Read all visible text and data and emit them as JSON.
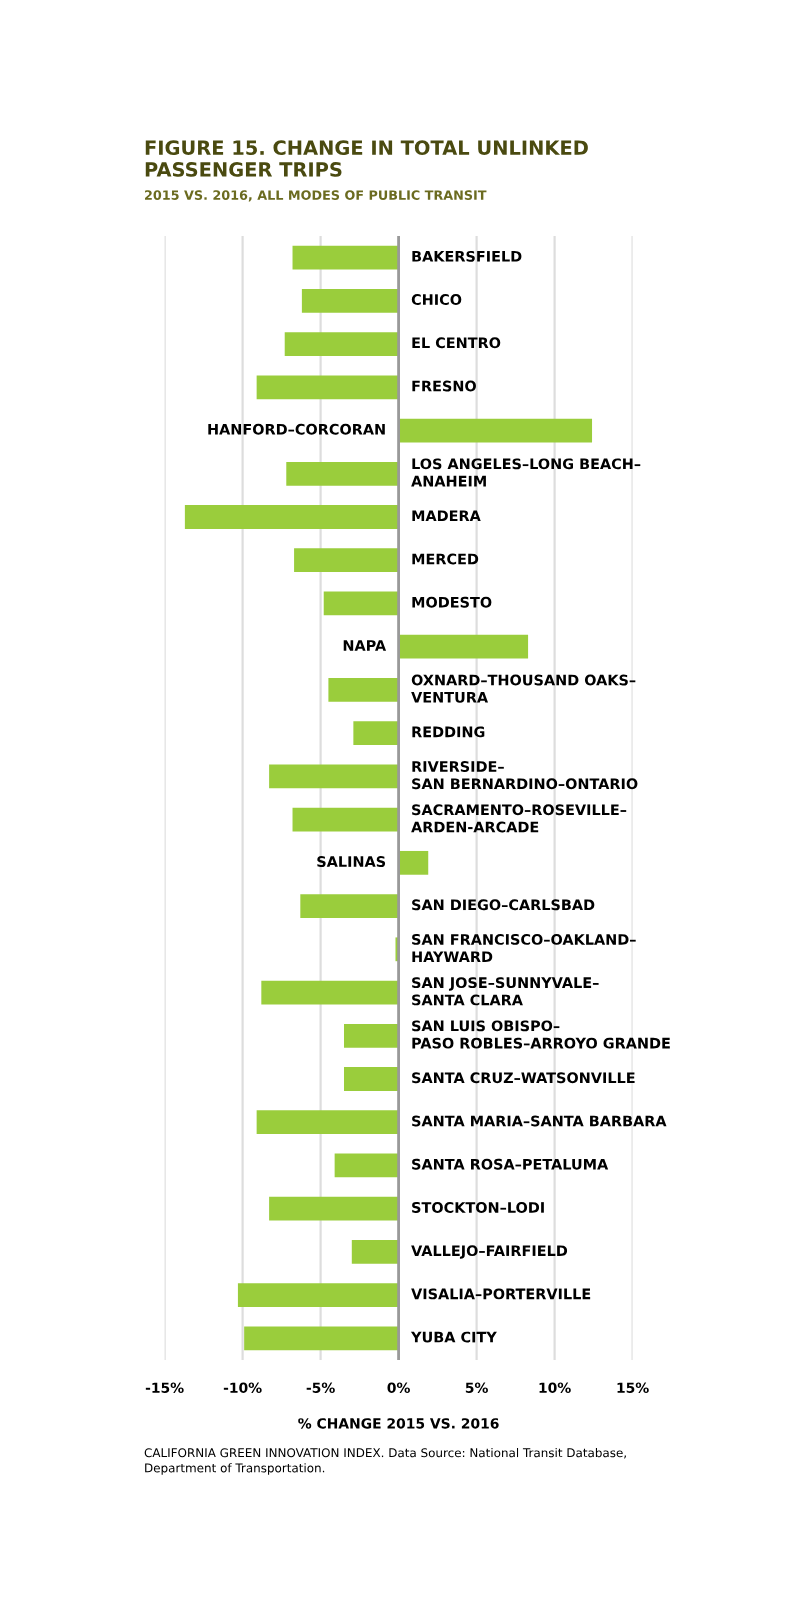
{
  "chart_data": {
    "type": "bar",
    "orientation": "horizontal",
    "title": "FIGURE 15. CHANGE IN TOTAL UNLINKED\nPASSENGER TRIPS",
    "subtitle": "2015 VS. 2016, ALL MODES OF PUBLIC TRANSIT",
    "xlabel": "% CHANGE 2015 VS. 2016",
    "categories": [
      "BAKERSFIELD",
      "CHICO",
      "EL CENTRO",
      "FRESNO",
      "HANFORD–CORCORAN",
      "LOS ANGELES–LONG BEACH–\nANAHEIM",
      "MADERA",
      "MERCED",
      "MODESTO",
      "NAPA",
      "OXNARD–THOUSAND OAKS–\nVENTURA",
      "REDDING",
      "RIVERSIDE–\nSAN BERNARDINO–ONTARIO",
      "SACRAMENTO–ROSEVILLE–\nARDEN-ARCADE",
      "SALINAS",
      "SAN DIEGO–CARLSBAD",
      "SAN FRANCISCO–OAKLAND–\nHAYWARD",
      "SAN JOSE–SUNNYVALE–\nSANTA CLARA",
      "SAN LUIS OBISPO–\nPASO ROBLES–ARROYO GRANDE",
      "SANTA CRUZ–WATSONVILLE",
      "SANTA MARIA–SANTA BARBARA",
      "SANTA ROSA–PETALUMA",
      "STOCKTON–LODI",
      "VALLEJO–FAIRFIELD",
      "VISALIA–PORTERVILLE",
      "YUBA CITY"
    ],
    "values": [
      -6.8,
      -6.2,
      -7.3,
      -9.1,
      12.4,
      -7.2,
      -13.7,
      -6.7,
      -4.8,
      8.3,
      -4.5,
      -2.9,
      -8.3,
      -6.8,
      1.9,
      -6.3,
      -0.2,
      -8.8,
      -3.5,
      -3.5,
      -9.1,
      -4.1,
      -8.3,
      -3.0,
      -10.3,
      -9.9
    ],
    "color": "#9acd3c",
    "xlim": [
      -15,
      15
    ],
    "xticks": [
      {
        "value": -15,
        "label": "-15%"
      },
      {
        "value": -10,
        "label": "-10%"
      },
      {
        "value": -5,
        "label": "-5%"
      },
      {
        "value": 0,
        "label": "0%"
      },
      {
        "value": 5,
        "label": "5%"
      },
      {
        "value": 10,
        "label": "10%"
      },
      {
        "value": 15,
        "label": "15%"
      }
    ],
    "grid": "x",
    "ref_lines": [
      {
        "axis": "x",
        "value": 0,
        "color": "#999999"
      }
    ],
    "annotations": [
      "CALIFORNIA GREEN INNOVATION INDEX. Data Source: National Transit Database,\nDepartment of Transportation."
    ]
  }
}
